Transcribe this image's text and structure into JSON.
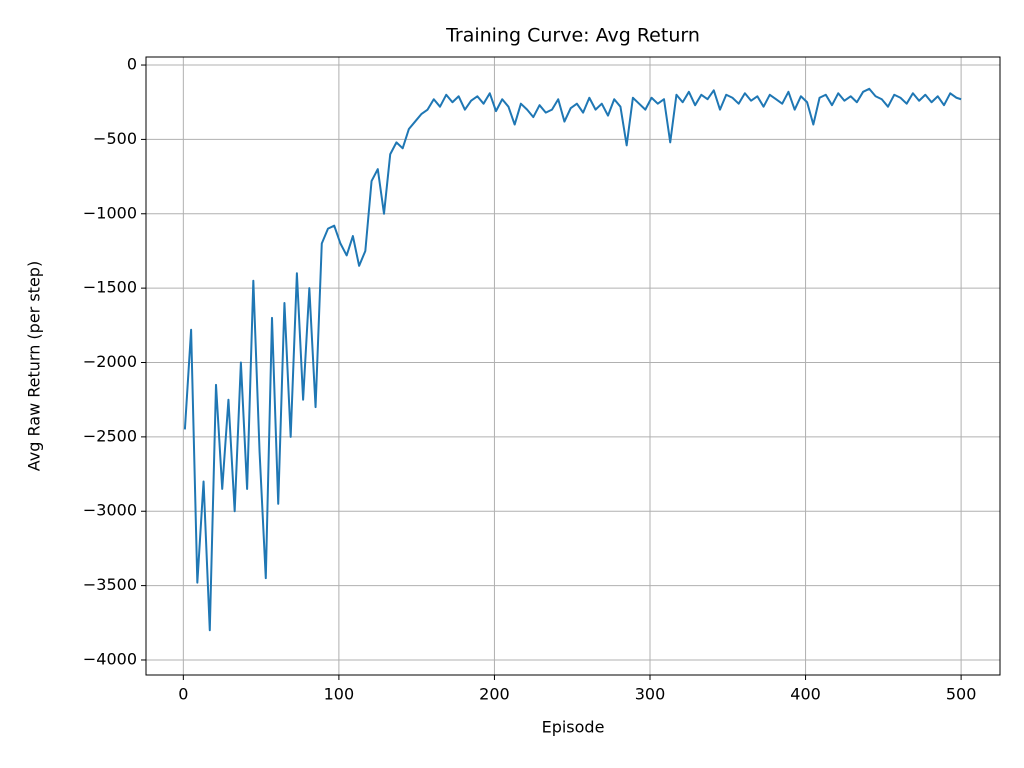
{
  "chart_data": {
    "type": "line",
    "title": "Training Curve: Avg Return",
    "x_label": "Episode",
    "y_label": "Avg Raw Return (per step)",
    "x": [
      1,
      5,
      9,
      13,
      17,
      21,
      25,
      29,
      33,
      37,
      41,
      45,
      49,
      53,
      57,
      61,
      65,
      69,
      73,
      77,
      81,
      85,
      89,
      93,
      97,
      101,
      105,
      109,
      113,
      117,
      121,
      125,
      129,
      133,
      137,
      141,
      145,
      149,
      153,
      157,
      161,
      165,
      169,
      173,
      177,
      181,
      185,
      189,
      193,
      197,
      201,
      205,
      209,
      213,
      217,
      221,
      225,
      229,
      233,
      237,
      241,
      245,
      249,
      253,
      257,
      261,
      265,
      269,
      273,
      277,
      281,
      285,
      289,
      293,
      297,
      301,
      305,
      309,
      313,
      317,
      321,
      325,
      329,
      333,
      337,
      341,
      345,
      349,
      353,
      357,
      361,
      365,
      369,
      373,
      377,
      381,
      385,
      389,
      393,
      397,
      401,
      405,
      409,
      413,
      417,
      421,
      425,
      429,
      433,
      437,
      441,
      445,
      449,
      453,
      457,
      461,
      465,
      469,
      473,
      477,
      481,
      485,
      489,
      493,
      497,
      500
    ],
    "values": [
      -2450,
      -1780,
      -3480,
      -2800,
      -3800,
      -2150,
      -2850,
      -2250,
      -3000,
      -2000,
      -2850,
      -1450,
      -2600,
      -3450,
      -1700,
      -2950,
      -1600,
      -2500,
      -1400,
      -2250,
      -1500,
      -2300,
      -1200,
      -1100,
      -1080,
      -1200,
      -1280,
      -1150,
      -1350,
      -1250,
      -780,
      -700,
      -1000,
      -600,
      -520,
      -560,
      -430,
      -380,
      -330,
      -300,
      -230,
      -280,
      -200,
      -250,
      -210,
      -300,
      -240,
      -210,
      -260,
      -190,
      -310,
      -230,
      -280,
      -400,
      -260,
      -300,
      -350,
      -270,
      -320,
      -300,
      -230,
      -380,
      -290,
      -260,
      -320,
      -220,
      -300,
      -260,
      -340,
      -230,
      -280,
      -540,
      -220,
      -260,
      -300,
      -220,
      -260,
      -230,
      -520,
      -200,
      -250,
      -180,
      -270,
      -200,
      -230,
      -170,
      -300,
      -200,
      -220,
      -260,
      -190,
      -240,
      -210,
      -280,
      -200,
      -230,
      -260,
      -180,
      -300,
      -210,
      -250,
      -400,
      -220,
      -200,
      -270,
      -190,
      -240,
      -210,
      -250,
      -180,
      -160,
      -210,
      -230,
      -280,
      -200,
      -220,
      -260,
      -190,
      -240,
      -200,
      -250,
      -210,
      -270,
      -190,
      -220,
      -230
    ],
    "color": "#1f77b4",
    "xlim": [
      -24,
      525
    ],
    "ylim": [
      -4101,
      54
    ],
    "xticks": [
      0,
      100,
      200,
      300,
      400,
      500
    ],
    "yticks": [
      0,
      {
        "value": -500,
        "label": "−500"
      },
      {
        "value": -1000,
        "label": "−1000"
      },
      {
        "value": -1500,
        "label": "−1500"
      },
      {
        "value": -2000,
        "label": "−2000"
      },
      {
        "value": -2500,
        "label": "−2500"
      },
      {
        "value": -3000,
        "label": "−3000"
      },
      {
        "value": -3500,
        "label": "−3500"
      },
      {
        "value": -4000,
        "label": "−4000"
      }
    ],
    "grid": true
  }
}
